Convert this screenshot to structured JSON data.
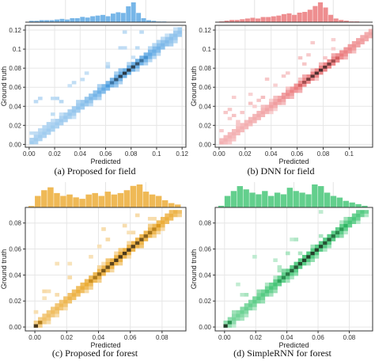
{
  "figure": {
    "panels": [
      {
        "id": "a",
        "caption": "(a)  Proposed for field",
        "color": "#4a9de0",
        "xlabel": "Predicted",
        "ylabel": "Ground truth",
        "xticks": [
          "0.00",
          "0.02",
          "0.04",
          "0.06",
          "0.08",
          "0.1",
          "0.12"
        ],
        "yticks": [
          "0.00",
          "0.02",
          "0.04",
          "0.06",
          "0.08",
          "0.1",
          "0.12"
        ]
      },
      {
        "id": "b",
        "caption": "(b) DNN for field",
        "color": "#e8686b",
        "xlabel": "Predicted",
        "ylabel": "Ground truth",
        "xticks": [
          "0.00",
          "0.02",
          "0.04",
          "0.06",
          "0.08",
          "0.1"
        ],
        "yticks": [
          "0.00",
          "0.02",
          "0.04",
          "0.06",
          "0.08",
          "0.1",
          "0.12"
        ]
      },
      {
        "id": "c",
        "caption": "(c) Proposed for forest",
        "color": "#e9a21e",
        "xlabel": "Predicted",
        "ylabel": "Ground truth",
        "xticks": [
          "0.00",
          "0.02",
          "0.04",
          "0.06",
          "0.08"
        ],
        "yticks": [
          "0.00",
          "0.02",
          "0.04",
          "0.06",
          "0.08"
        ]
      },
      {
        "id": "d",
        "caption": "(d) SimpleRNN for forest",
        "color": "#2fbf67",
        "xlabel": "Predicted",
        "ylabel": "Ground truth",
        "xticks": [
          "0.00",
          "0.02",
          "0.04",
          "0.06",
          "0.08"
        ],
        "yticks": [
          "0.00",
          "0.02",
          "0.04",
          "0.06",
          "0.08"
        ]
      }
    ]
  },
  "chart_data": [
    {
      "type": "heatmap",
      "subtype": "2d-histogram with top marginal histogram",
      "title": "(a)  Proposed for field",
      "xlabel": "Predicted",
      "ylabel": "Ground truth",
      "xlim": [
        -0.003,
        0.123
      ],
      "ylim": [
        -0.003,
        0.125
      ],
      "color": "#4a9de0",
      "density_trend": "cells concentrated along the diagonal, darkest near 0.06-0.08",
      "marginal_hist": {
        "bin_edges_start": 0.0,
        "bin_width": 0.004,
        "counts": [
          2,
          2,
          3,
          3,
          3,
          4,
          5,
          4,
          6,
          6,
          8,
          7,
          9,
          10,
          11,
          9,
          13,
          15,
          14,
          24,
          30,
          14,
          6,
          3,
          2,
          1,
          1,
          0,
          0,
          0
        ]
      },
      "heatmap_cells": []
    },
    {
      "type": "heatmap",
      "subtype": "2d-histogram with top marginal histogram",
      "title": "(b) DNN for field",
      "xlabel": "Predicted",
      "ylabel": "Ground truth",
      "xlim": [
        -0.003,
        0.118
      ],
      "ylim": [
        -0.003,
        0.125
      ],
      "color": "#e8686b",
      "density_trend": "cells concentrated along the diagonal, darkest near 0.07-0.08",
      "marginal_hist": {
        "bin_edges_start": 0.0,
        "bin_width": 0.004,
        "counts": [
          1,
          2,
          3,
          3,
          4,
          5,
          6,
          5,
          7,
          7,
          8,
          9,
          11,
          12,
          10,
          13,
          14,
          17,
          22,
          27,
          20,
          10,
          5,
          3,
          2,
          1,
          1,
          0,
          0,
          0
        ]
      },
      "heatmap_cells": []
    },
    {
      "type": "heatmap",
      "subtype": "2d-histogram with top marginal histogram",
      "title": "(c) Proposed for forest",
      "xlabel": "Predicted",
      "ylabel": "Ground truth",
      "xlim": [
        -0.006,
        0.095
      ],
      "ylim": [
        -0.003,
        0.092
      ],
      "color": "#e9a21e",
      "density_trend": "cells concentrated along the diagonal, darkest near 0.00-0.01 and 0.05-0.06",
      "marginal_hist": {
        "bin_edges_start": -0.004,
        "bin_width": 0.004,
        "counts": [
          1,
          8,
          12,
          14,
          10,
          8,
          9,
          7,
          6,
          9,
          10,
          8,
          11,
          9,
          10,
          12,
          15,
          16,
          11,
          9,
          8,
          5,
          3,
          2
        ]
      },
      "heatmap_cells": []
    },
    {
      "type": "heatmap",
      "subtype": "2d-histogram with top marginal histogram",
      "title": "(d) SimpleRNN for forest",
      "xlabel": "Predicted",
      "ylabel": "Ground truth",
      "xlim": [
        -0.006,
        0.095
      ],
      "ylim": [
        -0.003,
        0.092
      ],
      "color": "#2fbf67",
      "density_trend": "cells concentrated along the diagonal, darkest near 0.01 and 0.05",
      "marginal_hist": {
        "bin_edges_start": -0.004,
        "bin_width": 0.004,
        "counts": [
          1,
          7,
          10,
          13,
          11,
          9,
          8,
          10,
          7,
          9,
          8,
          12,
          10,
          9,
          8,
          14,
          13,
          9,
          7,
          6,
          4,
          3,
          2,
          1
        ]
      },
      "heatmap_cells": []
    }
  ]
}
